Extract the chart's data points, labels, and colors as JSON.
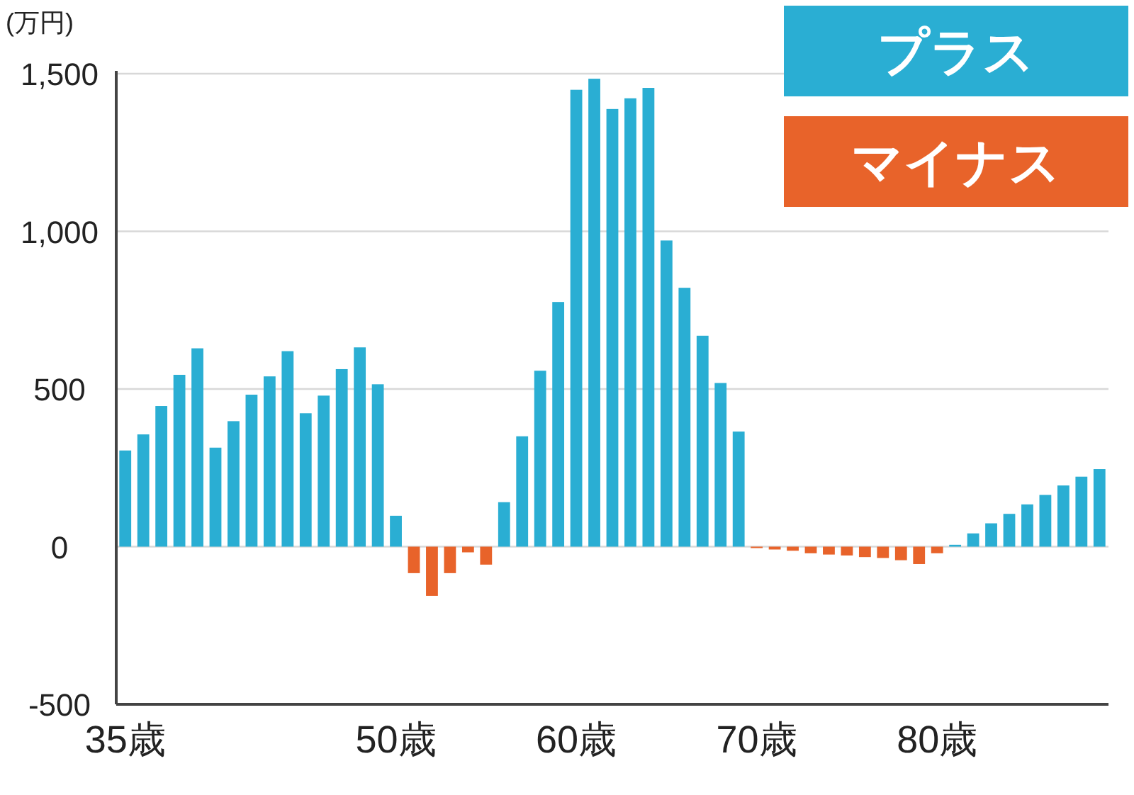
{
  "chart_data": {
    "type": "bar",
    "stacked": true,
    "ylabel": "(万円)",
    "categories": [
      "35歳",
      null,
      null,
      null,
      null,
      null,
      null,
      null,
      null,
      null,
      null,
      null,
      null,
      null,
      null,
      "50歳",
      null,
      null,
      null,
      null,
      null,
      null,
      null,
      null,
      null,
      "60歳",
      null,
      null,
      null,
      null,
      null,
      null,
      null,
      null,
      null,
      "70歳",
      null,
      null,
      null,
      null,
      null,
      null,
      null,
      null,
      null,
      "80歳",
      null,
      null,
      null,
      null,
      null,
      null,
      null,
      null,
      null
    ],
    "series": [
      {
        "name": "プラス",
        "color": "#2aaed3",
        "values": [
          305,
          356,
          446,
          545,
          629,
          314,
          398,
          482,
          540,
          620,
          423,
          479,
          563,
          632,
          515,
          98,
          null,
          null,
          null,
          null,
          null,
          141,
          350,
          558,
          776,
          1449,
          1484,
          1388,
          1422,
          1455,
          971,
          821,
          669,
          519,
          365,
          null,
          null,
          null,
          null,
          null,
          null,
          null,
          null,
          null,
          null,
          null,
          6,
          42,
          74,
          104,
          134,
          164,
          194,
          222,
          246
        ]
      },
      {
        "name": "マイナス",
        "color": "#e8632a",
        "values": [
          null,
          null,
          null,
          null,
          null,
          null,
          null,
          null,
          null,
          null,
          null,
          null,
          null,
          null,
          null,
          null,
          -84,
          -156,
          -84,
          -18,
          -57,
          null,
          null,
          null,
          null,
          null,
          null,
          null,
          null,
          null,
          null,
          null,
          null,
          null,
          null,
          -3,
          -9,
          -13,
          -21,
          -25,
          -28,
          -33,
          -36,
          -43,
          -55,
          -21,
          null,
          null,
          null,
          null,
          null,
          null,
          null,
          null,
          null
        ]
      }
    ],
    "ylim": [
      -500,
      1500
    ],
    "yticks": [
      -500,
      0,
      500,
      {
        "value": 1000,
        "label": "1,000"
      },
      {
        "value": 1500,
        "label": "1,500"
      }
    ],
    "grid": "y",
    "legend": "top right"
  }
}
